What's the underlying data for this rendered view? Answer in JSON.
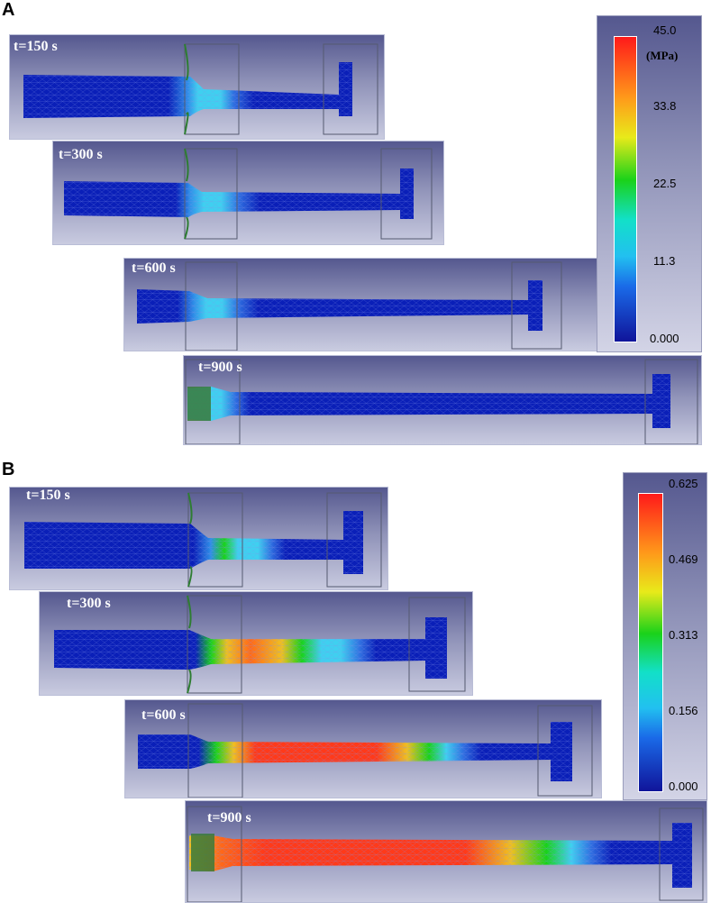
{
  "panel_a": {
    "label": "A",
    "unit": "(MPa)",
    "ticks": [
      "45.0",
      "33.8",
      "22.5",
      "11.3",
      "0.000"
    ],
    "frames": [
      {
        "time": "t=150 s"
      },
      {
        "time": "t=300 s"
      },
      {
        "time": "t=600 s"
      },
      {
        "time": "t=900 s"
      }
    ]
  },
  "panel_b": {
    "label": "B",
    "ticks": [
      "0.625",
      "0.469",
      "0.313",
      "0.156",
      "0.000"
    ],
    "frames": [
      {
        "time": "t=150 s"
      },
      {
        "time": "t=300 s"
      },
      {
        "time": "t=600 s"
      },
      {
        "time": "t=900 s"
      }
    ]
  },
  "colors": {
    "mesh_low": "#0a1fb8",
    "mesh_high": "#ff2020",
    "die_fill": "#3a7a3a"
  }
}
